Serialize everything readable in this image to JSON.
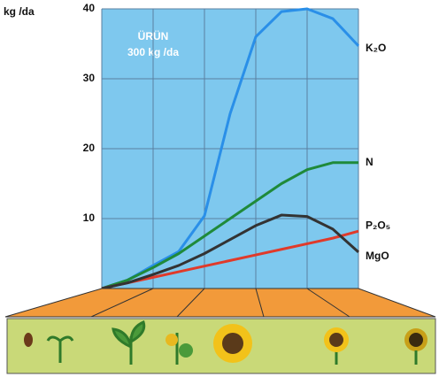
{
  "chart_data": {
    "type": "line",
    "y_label": "kg /da",
    "annotation": [
      "ÜRÜN",
      "300 kg /da"
    ],
    "x": [
      0,
      0.5,
      1,
      1.5,
      2,
      2.5,
      3,
      3.5,
      4,
      4.5,
      5
    ],
    "xlim": [
      0,
      5
    ],
    "ylim": [
      0,
      40
    ],
    "yticks": [
      10,
      20,
      30,
      40
    ],
    "grid": true,
    "series": [
      {
        "name": "K₂O",
        "color": "#2a8fe8",
        "values": [
          0,
          1.2,
          3.3,
          5.3,
          10.4,
          25,
          36,
          39.6,
          40,
          38.6,
          34.7
        ]
      },
      {
        "name": "N",
        "color": "#1f8a3a",
        "values": [
          0,
          1.2,
          3,
          5,
          7.5,
          10,
          12.5,
          15,
          17,
          18,
          18
        ]
      },
      {
        "name": "P₂O₅",
        "color": "#e03a2a",
        "values": [
          0,
          0.8,
          1.6,
          2.4,
          3.2,
          4,
          4.8,
          5.6,
          6.4,
          7.2,
          8.2
        ]
      },
      {
        "name": "MgO",
        "color": "#333333",
        "values": [
          0,
          0.8,
          2,
          3.3,
          5,
          7,
          9,
          10.5,
          10.3,
          8.5,
          5.2
        ]
      }
    ]
  }
}
